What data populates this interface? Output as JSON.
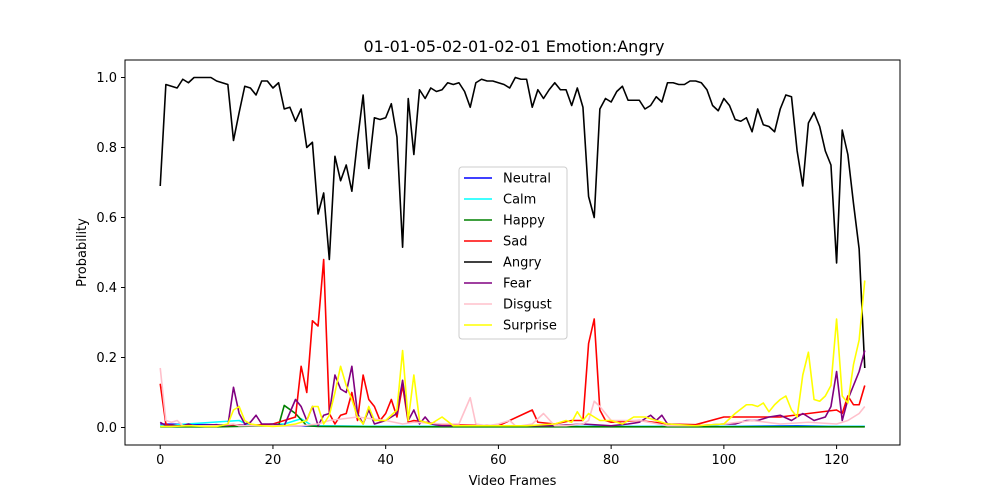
{
  "chart_data": {
    "type": "line",
    "title": "01-01-05-02-01-02-01 Emotion:Angry",
    "xlabel": "Video Frames",
    "ylabel": "Probability",
    "xlim": [
      -6.25,
      131.25
    ],
    "ylim": [
      -0.05,
      1.05
    ],
    "xticks": [
      0,
      20,
      40,
      60,
      80,
      100,
      120
    ],
    "yticks": [
      0.0,
      0.2,
      0.4,
      0.6,
      0.8,
      1.0
    ],
    "ytick_labels": [
      "0.0",
      "0.2",
      "0.4",
      "0.6",
      "0.8",
      "1.0"
    ],
    "grid": false,
    "legend_position": "center",
    "series": [
      {
        "name": "Neutral",
        "color": "#0000ff",
        "x": [
          0,
          20,
          40,
          60,
          80,
          100,
          113,
          120,
          125
        ],
        "y": [
          0.01,
          0.005,
          0.003,
          0.003,
          0.003,
          0.003,
          0.005,
          0.003,
          0.003
        ]
      },
      {
        "name": "Calm",
        "color": "#00ffff",
        "x": [
          0,
          14,
          16,
          20,
          22,
          25,
          27,
          40,
          60,
          80,
          100,
          120,
          125
        ],
        "y": [
          0.005,
          0.02,
          0.005,
          0.01,
          0.01,
          0.025,
          0.005,
          0.003,
          0.003,
          0.003,
          0.003,
          0.003,
          0.003
        ]
      },
      {
        "name": "Happy",
        "color": "#008000",
        "x": [
          0,
          10,
          20,
          21,
          22,
          24,
          26,
          28,
          40,
          60,
          80,
          100,
          120,
          125
        ],
        "y": [
          0.002,
          0.002,
          0.005,
          0.005,
          0.063,
          0.04,
          0.005,
          0.003,
          0.002,
          0.002,
          0.002,
          0.002,
          0.002,
          0.002
        ]
      },
      {
        "name": "Sad",
        "color": "#ff0000",
        "x": [
          0,
          1,
          2,
          5,
          10,
          13,
          15,
          20,
          24,
          25,
          26,
          27,
          28,
          29,
          30,
          31,
          32,
          33,
          34,
          35,
          36,
          37,
          38,
          39,
          40,
          41,
          42,
          43,
          44,
          45,
          50,
          60,
          66,
          67,
          70,
          73,
          75,
          76,
          77,
          78,
          79,
          80,
          85,
          90,
          95,
          100,
          105,
          110,
          115,
          120,
          121,
          122,
          123,
          124,
          125
        ],
        "y": [
          0.125,
          0.01,
          0.005,
          0.005,
          0.005,
          0.008,
          0.005,
          0.01,
          0.03,
          0.175,
          0.1,
          0.305,
          0.29,
          0.48,
          0.04,
          0.01,
          0.035,
          0.04,
          0.1,
          0.02,
          0.15,
          0.08,
          0.06,
          0.02,
          0.04,
          0.08,
          0.03,
          0.12,
          0.015,
          0.02,
          0.008,
          0.005,
          0.05,
          0.015,
          0.01,
          0.02,
          0.02,
          0.24,
          0.31,
          0.05,
          0.02,
          0.015,
          0.02,
          0.01,
          0.008,
          0.03,
          0.03,
          0.03,
          0.04,
          0.05,
          0.04,
          0.09,
          0.065,
          0.065,
          0.12
        ]
      },
      {
        "name": "Angry",
        "color": "#000000",
        "x": [
          0,
          1,
          2,
          3,
          4,
          5,
          6,
          7,
          8,
          9,
          10,
          11,
          12,
          13,
          14,
          15,
          16,
          17,
          18,
          19,
          20,
          21,
          22,
          23,
          24,
          25,
          26,
          27,
          28,
          29,
          30,
          31,
          32,
          33,
          34,
          35,
          36,
          37,
          38,
          39,
          40,
          41,
          42,
          43,
          44,
          45,
          46,
          47,
          48,
          49,
          50,
          51,
          52,
          53,
          54,
          55,
          56,
          57,
          58,
          59,
          60,
          61,
          62,
          63,
          64,
          65,
          66,
          67,
          68,
          69,
          70,
          71,
          72,
          73,
          74,
          75,
          76,
          77,
          78,
          79,
          80,
          81,
          82,
          83,
          84,
          85,
          86,
          87,
          88,
          89,
          90,
          91,
          92,
          93,
          94,
          95,
          96,
          97,
          98,
          99,
          100,
          101,
          102,
          103,
          104,
          105,
          106,
          107,
          108,
          109,
          110,
          111,
          112,
          113,
          114,
          115,
          116,
          117,
          118,
          119,
          120,
          121,
          122,
          123,
          124,
          125
        ],
        "y": [
          0.69,
          0.98,
          0.975,
          0.97,
          0.995,
          0.985,
          1.0,
          1.0,
          1.0,
          1.0,
          0.99,
          0.985,
          0.98,
          0.82,
          0.9,
          0.975,
          0.97,
          0.95,
          0.99,
          0.99,
          0.97,
          0.985,
          0.91,
          0.915,
          0.875,
          0.91,
          0.8,
          0.815,
          0.61,
          0.67,
          0.48,
          0.775,
          0.705,
          0.75,
          0.675,
          0.82,
          0.95,
          0.74,
          0.885,
          0.88,
          0.885,
          0.925,
          0.83,
          0.515,
          0.94,
          0.78,
          0.965,
          0.94,
          0.97,
          0.96,
          0.965,
          0.985,
          0.98,
          0.985,
          0.96,
          0.915,
          0.985,
          0.995,
          0.99,
          0.99,
          0.985,
          0.98,
          0.97,
          1.0,
          0.995,
          0.995,
          0.915,
          0.965,
          0.94,
          0.965,
          0.985,
          0.965,
          0.965,
          0.92,
          0.97,
          0.915,
          0.66,
          0.6,
          0.91,
          0.94,
          0.93,
          0.96,
          0.975,
          0.935,
          0.935,
          0.935,
          0.91,
          0.92,
          0.945,
          0.93,
          0.985,
          0.985,
          0.98,
          0.98,
          0.99,
          0.99,
          0.985,
          0.965,
          0.92,
          0.905,
          0.94,
          0.92,
          0.88,
          0.875,
          0.885,
          0.845,
          0.91,
          0.865,
          0.86,
          0.845,
          0.91,
          0.95,
          0.945,
          0.79,
          0.69,
          0.87,
          0.9,
          0.86,
          0.79,
          0.75,
          0.47,
          0.85,
          0.78,
          0.64,
          0.51,
          0.17
        ]
      },
      {
        "name": "Fear",
        "color": "#800080",
        "x": [
          0,
          1,
          2,
          3,
          4,
          5,
          6,
          10,
          12,
          13,
          14,
          15,
          16,
          17,
          18,
          20,
          22,
          24,
          25,
          26,
          27,
          28,
          29,
          30,
          31,
          32,
          33,
          34,
          35,
          36,
          37,
          38,
          40,
          42,
          43,
          44,
          45,
          46,
          47,
          48,
          50,
          55,
          60,
          65,
          70,
          75,
          80,
          83,
          85,
          87,
          88,
          89,
          90,
          95,
          100,
          102,
          104,
          106,
          108,
          110,
          112,
          114,
          116,
          118,
          119,
          120,
          121,
          122,
          123,
          124,
          125
        ],
        "y": [
          0.015,
          0.005,
          0.008,
          0.005,
          0.005,
          0.01,
          0.005,
          0.008,
          0.005,
          0.115,
          0.04,
          0.01,
          0.015,
          0.035,
          0.01,
          0.01,
          0.005,
          0.08,
          0.06,
          0.02,
          0.06,
          0.005,
          0.035,
          0.04,
          0.15,
          0.11,
          0.1,
          0.175,
          0.04,
          0.01,
          0.05,
          0.01,
          0.02,
          0.04,
          0.135,
          0.02,
          0.05,
          0.01,
          0.03,
          0.01,
          0.005,
          0.005,
          0.005,
          0.005,
          0.005,
          0.01,
          0.005,
          0.01,
          0.015,
          0.035,
          0.02,
          0.035,
          0.01,
          0.005,
          0.01,
          0.01,
          0.02,
          0.02,
          0.03,
          0.035,
          0.02,
          0.04,
          0.02,
          0.03,
          0.06,
          0.16,
          0.02,
          0.08,
          0.12,
          0.16,
          0.22
        ]
      },
      {
        "name": "Disgust",
        "color": "#ffc0cb",
        "x": [
          0,
          1,
          2,
          3,
          4,
          6,
          10,
          13,
          14,
          15,
          20,
          25,
          28,
          30,
          35,
          40,
          43,
          45,
          50,
          53,
          55,
          56,
          58,
          60,
          62,
          63,
          64,
          66,
          68,
          70,
          72,
          75,
          76,
          77,
          78,
          80,
          85,
          90,
          95,
          100,
          105,
          110,
          115,
          120,
          122,
          124,
          125
        ],
        "y": [
          0.17,
          0.02,
          0.015,
          0.02,
          0.005,
          0.005,
          0.005,
          0.01,
          0.005,
          0.005,
          0.005,
          0.005,
          0.01,
          0.02,
          0.03,
          0.02,
          0.01,
          0.015,
          0.01,
          0.01,
          0.085,
          0.01,
          0.005,
          0.01,
          0.02,
          0.005,
          0.005,
          0.01,
          0.04,
          0.005,
          0.005,
          0.01,
          0.02,
          0.075,
          0.06,
          0.02,
          0.02,
          0.005,
          0.005,
          0.01,
          0.02,
          0.01,
          0.015,
          0.01,
          0.02,
          0.04,
          0.06
        ]
      },
      {
        "name": "Surprise",
        "color": "#ffff00",
        "x": [
          0,
          2,
          5,
          8,
          10,
          12,
          13,
          14,
          15,
          16,
          18,
          20,
          22,
          24,
          26,
          27,
          28,
          29,
          30,
          31,
          32,
          33,
          34,
          35,
          36,
          37,
          38,
          40,
          42,
          43,
          44,
          45,
          46,
          48,
          50,
          52,
          55,
          60,
          65,
          70,
          72,
          73,
          74,
          75,
          76,
          78,
          80,
          82,
          84,
          86,
          88,
          90,
          95,
          100,
          102,
          104,
          105,
          106,
          107,
          108,
          109,
          110,
          111,
          112,
          113,
          114,
          115,
          116,
          117,
          118,
          119,
          120,
          121,
          122,
          123,
          124,
          125
        ],
        "y": [
          0.003,
          0.003,
          0.005,
          0.003,
          0.003,
          0.01,
          0.05,
          0.06,
          0.02,
          0.01,
          0.005,
          0.003,
          0.005,
          0.01,
          0.02,
          0.06,
          0.06,
          0.01,
          0.035,
          0.1,
          0.175,
          0.12,
          0.08,
          0.03,
          0.01,
          0.06,
          0.02,
          0.02,
          0.05,
          0.22,
          0.02,
          0.15,
          0.02,
          0.01,
          0.03,
          0.005,
          0.005,
          0.005,
          0.005,
          0.01,
          0.02,
          0.015,
          0.045,
          0.02,
          0.04,
          0.02,
          0.02,
          0.01,
          0.03,
          0.03,
          0.02,
          0.01,
          0.005,
          0.01,
          0.04,
          0.065,
          0.065,
          0.06,
          0.07,
          0.045,
          0.065,
          0.08,
          0.09,
          0.05,
          0.03,
          0.15,
          0.215,
          0.08,
          0.075,
          0.09,
          0.12,
          0.31,
          0.09,
          0.07,
          0.18,
          0.25,
          0.42
        ]
      }
    ]
  }
}
